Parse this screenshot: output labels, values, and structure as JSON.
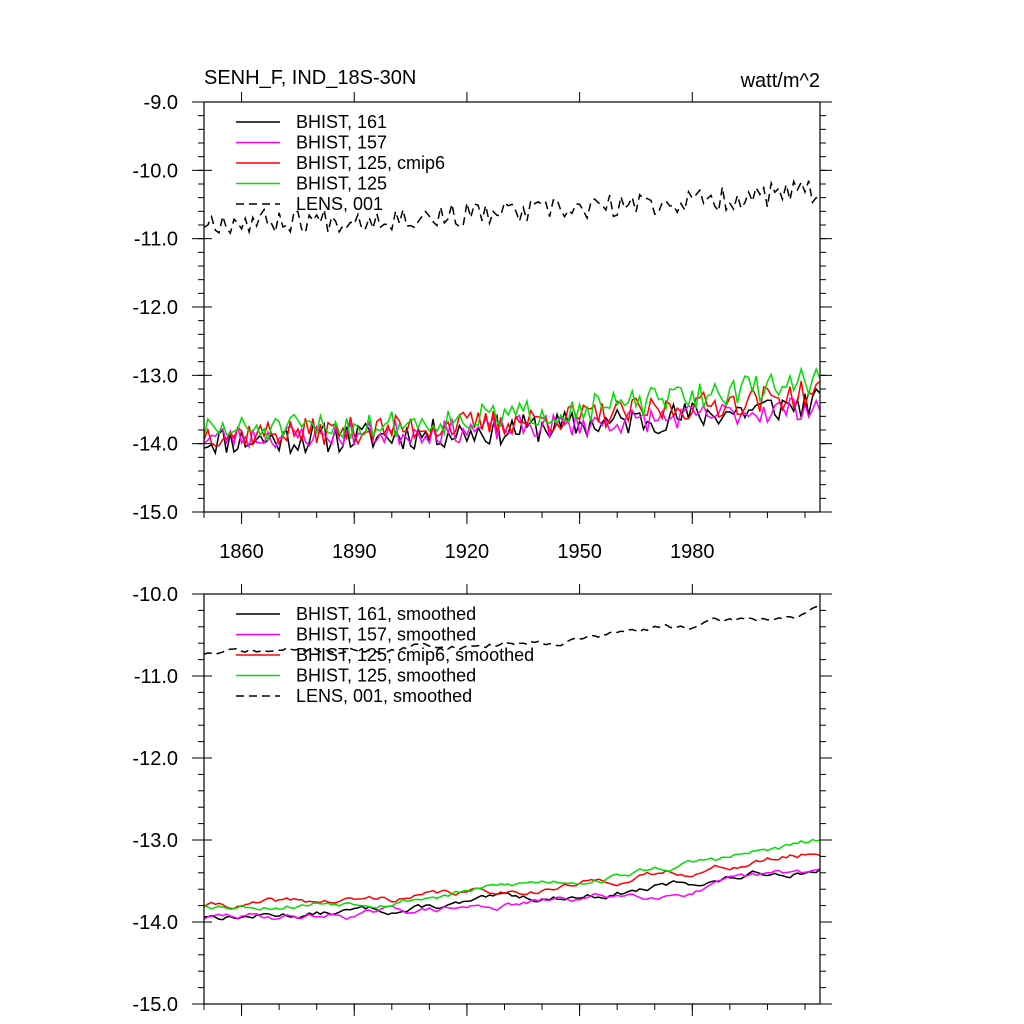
{
  "chart_data": [
    {
      "type": "line",
      "title": "SENH_F, IND_18S-30N",
      "units": "watt/m^2",
      "xlim": [
        1850,
        2014
      ],
      "ylim": [
        -15.0,
        -9.0
      ],
      "xticks": [
        1860,
        1890,
        1920,
        1950,
        1980
      ],
      "xtick_labels": [
        "1860",
        "1890",
        "1920",
        "1950",
        "1980"
      ],
      "yticks": [
        -9.0,
        -10.0,
        -11.0,
        -12.0,
        -13.0,
        -14.0,
        -15.0
      ],
      "ytick_labels": [
        "-9.0",
        "-10.0",
        "-11.0",
        "-12.0",
        "-13.0",
        "-14.0",
        "-15.0"
      ],
      "legend_position": "top-left",
      "series": [
        {
          "name": "BHIST, 161",
          "color": "#000000",
          "dash": "solid",
          "base": -13.95,
          "trend": 0.55,
          "noise": 0.22,
          "seed": 11
        },
        {
          "name": "BHIST, 157",
          "color": "#ff00ff",
          "dash": "solid",
          "base": -13.9,
          "trend": 0.45,
          "noise": 0.18,
          "seed": 23
        },
        {
          "name": "BHIST, 125, cmip6",
          "color": "#ff0000",
          "dash": "solid",
          "base": -13.85,
          "trend": 0.6,
          "noise": 0.2,
          "seed": 37
        },
        {
          "name": "BHIST, 125",
          "color": "#00dd00",
          "dash": "solid",
          "base": -13.8,
          "trend": 0.75,
          "noise": 0.2,
          "seed": 51
        },
        {
          "name": "LENS, 001",
          "color": "#000000",
          "dash": "dashed",
          "base": -10.75,
          "trend": 0.45,
          "noise": 0.18,
          "seed": 67
        }
      ]
    },
    {
      "type": "line",
      "xlim": [
        1850,
        2014
      ],
      "ylim": [
        -15.0,
        -10.0
      ],
      "yticks": [
        -10.0,
        -11.0,
        -12.0,
        -13.0,
        -14.0,
        -15.0
      ],
      "ytick_labels": [
        "-10.0",
        "-11.0",
        "-12.0",
        "-13.0",
        "-14.0",
        "-15.0"
      ],
      "legend_position": "top-left",
      "series": [
        {
          "name": "BHIST, 161, smoothed",
          "color": "#000000",
          "dash": "solid",
          "base": -13.92,
          "trend": 0.6,
          "noise": 0.05,
          "seed": 13
        },
        {
          "name": "BHIST, 157, smoothed",
          "color": "#ff00ff",
          "dash": "solid",
          "base": -13.95,
          "trend": 0.55,
          "noise": 0.05,
          "seed": 29
        },
        {
          "name": "BHIST, 125, cmip6, smoothed",
          "color": "#ff0000",
          "dash": "solid",
          "base": -13.8,
          "trend": 0.65,
          "noise": 0.05,
          "seed": 41
        },
        {
          "name": "BHIST, 125, smoothed",
          "color": "#00dd00",
          "dash": "solid",
          "base": -13.78,
          "trend": 0.75,
          "noise": 0.05,
          "seed": 53
        },
        {
          "name": "LENS, 001, smoothed",
          "color": "#000000",
          "dash": "dashed",
          "base": -10.72,
          "trend": 0.5,
          "noise": 0.04,
          "seed": 71
        }
      ]
    }
  ]
}
